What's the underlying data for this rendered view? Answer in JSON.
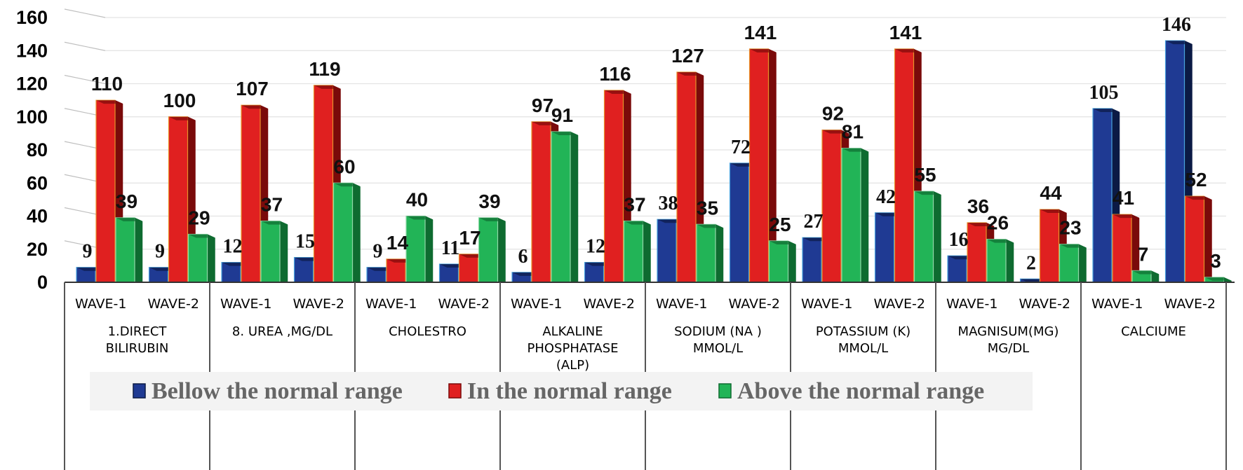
{
  "chart_data": {
    "type": "bar",
    "title": "",
    "xlabel": "",
    "ylabel": "",
    "ylim": [
      0,
      160
    ],
    "yticks": [
      0,
      20,
      40,
      60,
      80,
      100,
      120,
      140,
      160
    ],
    "grid": true,
    "legend_position": "bottom",
    "subcategories": [
      "WAVE-1",
      "WAVE-2"
    ],
    "groups": [
      {
        "label": [
          "1.DIRECT",
          "BILIRUBIN"
        ]
      },
      {
        "label": [
          "8. UREA ,MG/DL"
        ]
      },
      {
        "label": [
          "CHOLESTRO"
        ]
      },
      {
        "label": [
          "ALKALINE",
          "PHOSPHATASE",
          "(ALP)"
        ]
      },
      {
        "label": [
          "SODIUM (NA )",
          "MMOL/L"
        ]
      },
      {
        "label": [
          "POTASSIUM (K)",
          "MMOL/L"
        ]
      },
      {
        "label": [
          "MAGNISUM(MG)",
          "MG/DL"
        ]
      },
      {
        "label": [
          "CALCIUME"
        ]
      }
    ],
    "series": [
      {
        "name": "Bellow the  normal range",
        "color": "#1f3a93",
        "dark": "#0b1a45",
        "values": [
          9,
          9,
          12,
          15,
          9,
          11,
          6,
          12,
          38,
          72,
          27,
          42,
          16,
          2,
          105,
          146
        ]
      },
      {
        "name": "In the normal range",
        "color": "#e02020",
        "dark": "#7a0a0a",
        "values": [
          110,
          100,
          107,
          119,
          14,
          17,
          97,
          116,
          127,
          141,
          92,
          141,
          36,
          44,
          41,
          52
        ]
      },
      {
        "name": "Above the normal range",
        "color": "#22b457",
        "dark": "#0e6b30",
        "values": [
          39,
          29,
          37,
          60,
          40,
          39,
          91,
          37,
          35,
          25,
          81,
          55,
          26,
          23,
          7,
          3
        ]
      }
    ]
  }
}
